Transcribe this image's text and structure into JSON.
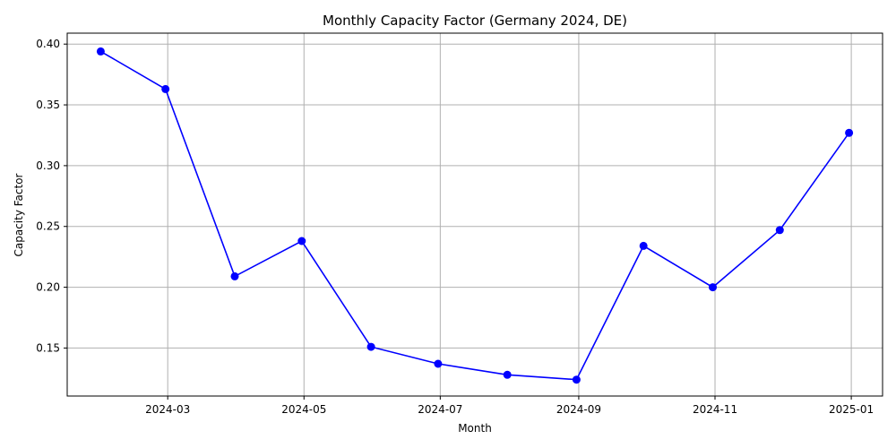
{
  "chart_data": {
    "type": "line",
    "title": "Monthly Capacity Factor (Germany 2024, DE)",
    "xlabel": "Month",
    "ylabel": "Capacity Factor",
    "x": [
      "2024-01-31",
      "2024-02-29",
      "2024-03-31",
      "2024-04-30",
      "2024-05-31",
      "2024-06-30",
      "2024-07-31",
      "2024-08-31",
      "2024-09-30",
      "2024-10-31",
      "2024-11-30",
      "2024-12-31"
    ],
    "series": [
      {
        "values": [
          0.394,
          0.363,
          0.209,
          0.238,
          0.151,
          0.137,
          0.128,
          0.124,
          0.234,
          0.2,
          0.247,
          0.327
        ],
        "color": "#0000ff"
      }
    ],
    "xlim": [
      "2024-01-16",
      "2025-01-15"
    ],
    "ylim": [
      0.1105,
      0.409
    ],
    "x_ticks": [
      "2024-03-01",
      "2024-05-01",
      "2024-07-01",
      "2024-09-01",
      "2024-11-01",
      "2025-01-01"
    ],
    "x_tick_labels": [
      "2024-03",
      "2024-05",
      "2024-07",
      "2024-09",
      "2024-11",
      "2025-01"
    ],
    "y_ticks": [
      0.15,
      0.2,
      0.25,
      0.3,
      0.35,
      0.4
    ],
    "y_tick_labels": [
      "0.15",
      "0.20",
      "0.25",
      "0.30",
      "0.35",
      "0.40"
    ],
    "grid": true,
    "marker": "circle"
  }
}
